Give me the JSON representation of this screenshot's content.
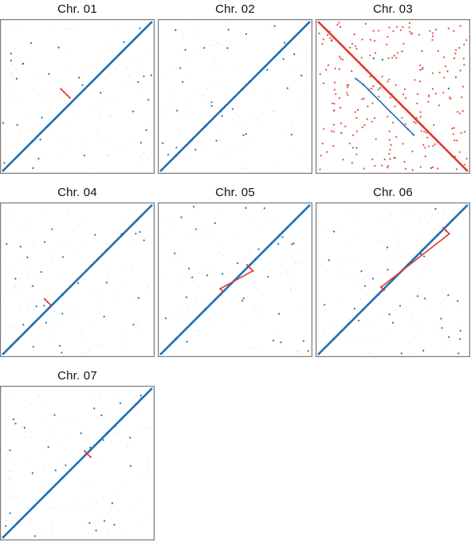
{
  "colors": {
    "blue": "#1f6fb2",
    "red": "#e13b2b",
    "frame": "#7a7a7a"
  },
  "chart_data": [
    {
      "type": "scatter",
      "title": "Chr. 01",
      "orientation": "diagonal",
      "axes_labeled": false,
      "series": [
        {
          "name": "",
          "color": "#1f6fb2",
          "x": [
            0.0,
            0.1,
            0.2,
            0.25,
            0.3,
            0.35,
            0.45,
            0.5,
            0.6,
            0.7,
            0.8,
            0.9,
            1.0
          ],
          "y": [
            0.0,
            0.1,
            0.2,
            0.25,
            0.3,
            0.35,
            0.45,
            0.5,
            0.6,
            0.7,
            0.8,
            0.9,
            1.0
          ]
        },
        {
          "name": "",
          "color": "#e13b2b",
          "x": [
            0.39,
            0.41,
            0.43,
            0.45
          ],
          "y": [
            0.55,
            0.53,
            0.51,
            0.49
          ]
        }
      ]
    },
    {
      "type": "scatter",
      "title": "Chr. 02",
      "orientation": "diagonal",
      "axes_labeled": false,
      "series": [
        {
          "name": "",
          "color": "#1f6fb2",
          "x": [
            0.0,
            0.1,
            0.2,
            0.3,
            0.4,
            0.5,
            0.55,
            0.6,
            0.7,
            0.8,
            0.9,
            1.0
          ],
          "y": [
            0.0,
            0.1,
            0.2,
            0.3,
            0.4,
            0.5,
            0.55,
            0.6,
            0.7,
            0.8,
            0.9,
            1.0
          ]
        },
        {
          "name": "",
          "color": "#e13b2b",
          "x": [],
          "y": []
        }
      ]
    },
    {
      "type": "scatter",
      "title": "Chr. 03",
      "orientation": "anti-diagonal",
      "axes_labeled": false,
      "series": [
        {
          "name": "",
          "color": "#e13b2b",
          "x": [
            0.0,
            0.1,
            0.2,
            0.3,
            0.4,
            0.5,
            0.6,
            0.7,
            0.8,
            0.9,
            1.0
          ],
          "y": [
            1.0,
            0.9,
            0.8,
            0.7,
            0.6,
            0.5,
            0.4,
            0.3,
            0.2,
            0.1,
            0.0
          ]
        },
        {
          "name": "",
          "color": "#1f6fb2",
          "x": [
            0.25,
            0.3,
            0.6,
            0.64
          ],
          "y": [
            0.62,
            0.58,
            0.28,
            0.24
          ]
        }
      ]
    },
    {
      "type": "scatter",
      "title": "Chr. 04",
      "orientation": "diagonal",
      "axes_labeled": false,
      "series": [
        {
          "name": "",
          "color": "#1f6fb2",
          "x": [
            0.0,
            0.05,
            0.1,
            0.2,
            0.3,
            0.4,
            0.5,
            0.6,
            0.7,
            0.8,
            0.9,
            1.0
          ],
          "y": [
            0.0,
            0.05,
            0.1,
            0.2,
            0.3,
            0.4,
            0.5,
            0.6,
            0.7,
            0.8,
            0.9,
            1.0
          ]
        },
        {
          "name": "",
          "color": "#e13b2b",
          "x": [
            0.28,
            0.3,
            0.32
          ],
          "y": [
            0.37,
            0.35,
            0.33
          ]
        }
      ]
    },
    {
      "type": "scatter",
      "title": "Chr. 05",
      "orientation": "diagonal",
      "axes_labeled": false,
      "series": [
        {
          "name": "",
          "color": "#1f6fb2",
          "x": [
            0.0,
            0.1,
            0.2,
            0.3,
            0.4,
            0.5,
            0.6,
            0.7,
            0.8,
            0.9,
            1.0
          ],
          "y": [
            0.0,
            0.1,
            0.2,
            0.3,
            0.4,
            0.5,
            0.6,
            0.7,
            0.8,
            0.9,
            1.0
          ]
        },
        {
          "name": "",
          "color": "#e13b2b",
          "x": [
            0.58,
            0.6,
            0.62,
            0.4,
            0.42
          ],
          "y": [
            0.6,
            0.58,
            0.56,
            0.44,
            0.42
          ]
        }
      ]
    },
    {
      "type": "scatter",
      "title": "Chr. 06",
      "orientation": "diagonal",
      "axes_labeled": false,
      "series": [
        {
          "name": "",
          "color": "#1f6fb2",
          "x": [
            0.0,
            0.1,
            0.2,
            0.3,
            0.4,
            0.5,
            0.6,
            0.7,
            0.8,
            0.9,
            1.0
          ],
          "y": [
            0.0,
            0.1,
            0.2,
            0.3,
            0.4,
            0.5,
            0.6,
            0.7,
            0.8,
            0.9,
            1.0
          ]
        },
        {
          "name": "",
          "color": "#e13b2b",
          "x": [
            0.84,
            0.86,
            0.88,
            0.42,
            0.44
          ],
          "y": [
            0.85,
            0.83,
            0.81,
            0.45,
            0.43
          ]
        }
      ]
    },
    {
      "type": "scatter",
      "title": "Chr. 07",
      "orientation": "diagonal",
      "axes_labeled": false,
      "series": [
        {
          "name": "",
          "color": "#1f6fb2",
          "x": [
            0.0,
            0.1,
            0.2,
            0.3,
            0.4,
            0.5,
            0.6,
            0.7,
            0.8,
            0.9,
            1.0
          ],
          "y": [
            0.0,
            0.1,
            0.2,
            0.3,
            0.4,
            0.5,
            0.6,
            0.7,
            0.8,
            0.9,
            1.0
          ]
        },
        {
          "name": "",
          "color": "#e13b2b",
          "x": [
            0.55,
            0.57,
            0.59
          ],
          "y": [
            0.58,
            0.56,
            0.54
          ]
        }
      ]
    }
  ]
}
